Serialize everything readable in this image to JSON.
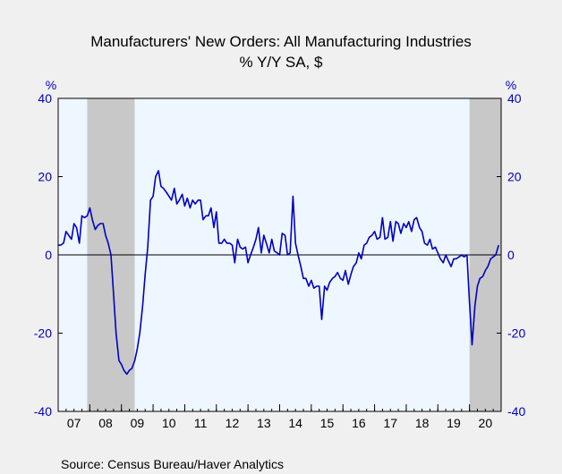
{
  "chart_data": {
    "type": "line",
    "title": "Manufacturers' New Orders: All Manufacturing Industries",
    "subtitle": "% Y/Y   SA, $",
    "ylabel_left": "%",
    "ylabel_right": "%",
    "ylim": [
      -40,
      40
    ],
    "yticks": [
      40,
      20,
      0,
      -20,
      -40
    ],
    "xlim": [
      2007.0,
      2021.0
    ],
    "x_tick_labels": [
      "07",
      "08",
      "09",
      "10",
      "11",
      "12",
      "13",
      "14",
      "15",
      "16",
      "17",
      "18",
      "19",
      "20"
    ],
    "recessions": [
      [
        2007.917,
        2009.417
      ],
      [
        2020.0,
        2021.0
      ]
    ],
    "colors": {
      "line": "#0000c0",
      "axis_text": "#0000c0",
      "plot_bg": "#eef6ff",
      "recession": "#c8c8c8"
    },
    "series": [
      {
        "x": [
          2007.0,
          2007.08,
          2007.17,
          2007.25,
          2007.33,
          2007.42,
          2007.5,
          2007.58,
          2007.67,
          2007.75,
          2007.83,
          2007.92,
          2008.0,
          2008.08,
          2008.17,
          2008.25,
          2008.33,
          2008.42,
          2008.5,
          2008.58,
          2008.67,
          2008.75,
          2008.83,
          2008.92,
          2009.0,
          2009.08,
          2009.17,
          2009.25,
          2009.33,
          2009.42,
          2009.5,
          2009.58,
          2009.67,
          2009.75,
          2009.83,
          2009.92,
          2010.0,
          2010.08,
          2010.17,
          2010.25,
          2010.33,
          2010.42,
          2010.5,
          2010.58,
          2010.67,
          2010.75,
          2010.83,
          2010.92,
          2011.0,
          2011.08,
          2011.17,
          2011.25,
          2011.33,
          2011.42,
          2011.5,
          2011.58,
          2011.67,
          2011.75,
          2011.83,
          2011.92,
          2012.0,
          2012.08,
          2012.17,
          2012.25,
          2012.33,
          2012.42,
          2012.5,
          2012.58,
          2012.67,
          2012.75,
          2012.83,
          2012.92,
          2013.0,
          2013.08,
          2013.17,
          2013.25,
          2013.33,
          2013.42,
          2013.5,
          2013.58,
          2013.67,
          2013.75,
          2013.83,
          2013.92,
          2014.0,
          2014.08,
          2014.17,
          2014.25,
          2014.33,
          2014.42,
          2014.5,
          2014.58,
          2014.67,
          2014.75,
          2014.83,
          2014.92,
          2015.0,
          2015.08,
          2015.17,
          2015.25,
          2015.33,
          2015.42,
          2015.5,
          2015.58,
          2015.67,
          2015.75,
          2015.83,
          2015.92,
          2016.0,
          2016.08,
          2016.17,
          2016.25,
          2016.33,
          2016.42,
          2016.5,
          2016.58,
          2016.67,
          2016.75,
          2016.83,
          2016.92,
          2017.0,
          2017.08,
          2017.17,
          2017.25,
          2017.33,
          2017.42,
          2017.5,
          2017.58,
          2017.67,
          2017.75,
          2017.83,
          2017.92,
          2018.0,
          2018.08,
          2018.17,
          2018.25,
          2018.33,
          2018.42,
          2018.5,
          2018.58,
          2018.67,
          2018.75,
          2018.83,
          2018.92,
          2019.0,
          2019.08,
          2019.17,
          2019.25,
          2019.33,
          2019.42,
          2019.5,
          2019.58,
          2019.67,
          2019.75,
          2019.83,
          2019.92,
          2020.0,
          2020.08,
          2020.17,
          2020.25,
          2020.33,
          2020.42,
          2020.5,
          2020.58,
          2020.67,
          2020.75,
          2020.83,
          2020.92
        ],
        "values": [
          2.5,
          2.5,
          3,
          6,
          5,
          4,
          8,
          7,
          3,
          10,
          9.5,
          10,
          12,
          9,
          6.5,
          7.5,
          8,
          8,
          5,
          3,
          0,
          -10,
          -20,
          -27,
          -28,
          -29.5,
          -30.5,
          -29.5,
          -29,
          -27,
          -24,
          -20,
          -13,
          -5,
          2,
          14,
          15,
          20,
          21.5,
          17.5,
          17,
          16,
          15,
          14,
          17,
          13,
          14,
          15.5,
          12.5,
          14.5,
          12,
          14,
          13,
          14,
          14,
          9,
          10,
          10,
          12,
          7,
          11,
          3,
          3,
          4,
          3,
          3,
          2.5,
          -2,
          4,
          2,
          1.5,
          2,
          -2,
          0,
          2,
          4,
          7,
          0.5,
          5,
          3,
          0.5,
          4,
          1,
          0.5,
          0,
          5.5,
          5,
          0,
          0.5,
          15,
          3,
          0,
          -3,
          -6,
          -6,
          -8,
          -6.5,
          -8.5,
          -8,
          -8,
          -16.5,
          -8,
          -9,
          -7,
          -6,
          -5.5,
          -4.5,
          -6,
          -6.5,
          -4,
          -7.5,
          -5,
          -3,
          -2,
          0.5,
          -1,
          2.5,
          3,
          4.5,
          5,
          6,
          4,
          4.5,
          9.5,
          4,
          4.5,
          8.5,
          3.5,
          8.5,
          8,
          5.5,
          8,
          7,
          8.5,
          6,
          9,
          9.5,
          7,
          6,
          3,
          2.5,
          4,
          1.5,
          2,
          0.5,
          -1,
          -2,
          0,
          -1.5,
          -3,
          -1,
          -1,
          -0.5,
          0,
          -0.5,
          0,
          -12,
          -23,
          -13,
          -8,
          -6,
          -5.5,
          -4,
          -3,
          -1,
          -0.5,
          0,
          2.5
        ]
      }
    ]
  },
  "source": "Source:   Census Bureau/Haver Analytics"
}
